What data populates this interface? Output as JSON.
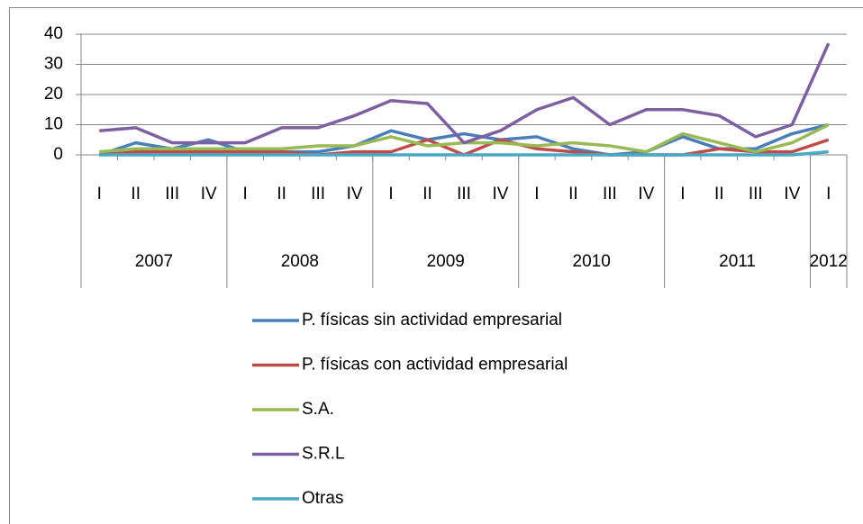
{
  "chart_data": {
    "type": "line",
    "category_groups": [
      {
        "name": "2007",
        "categories": [
          "I",
          "II",
          "III",
          "IV"
        ]
      },
      {
        "name": "2008",
        "categories": [
          "I",
          "II",
          "III",
          "IV"
        ]
      },
      {
        "name": "2009",
        "categories": [
          "I",
          "II",
          "III",
          "IV"
        ]
      },
      {
        "name": "2010",
        "categories": [
          "I",
          "II",
          "III",
          "IV"
        ]
      },
      {
        "name": "2011",
        "categories": [
          "I",
          "II",
          "III",
          "IV"
        ]
      },
      {
        "name": "2012",
        "categories": [
          "I"
        ]
      }
    ],
    "series": [
      {
        "name": "P. físicas sin actividad empresarial",
        "color": "#4a7ebb",
        "values": [
          0,
          4,
          2,
          5,
          1,
          1,
          1,
          3,
          8,
          5,
          7,
          5,
          6,
          2,
          0,
          1,
          6,
          2,
          2,
          7,
          10
        ]
      },
      {
        "name": "P. físicas con actividad empresarial",
        "color": "#be4b48",
        "values": [
          0,
          1,
          1,
          1,
          1,
          1,
          0,
          1,
          1,
          5,
          0,
          5,
          2,
          1,
          0,
          0,
          0,
          2,
          1,
          1,
          5
        ]
      },
      {
        "name": "S.A.",
        "color": "#98b954",
        "values": [
          1,
          2,
          2,
          2,
          2,
          2,
          3,
          3,
          6,
          3,
          4,
          4,
          3,
          4,
          3,
          1,
          7,
          4,
          1,
          4,
          10
        ]
      },
      {
        "name": "S.R.L",
        "color": "#7d60a0",
        "values": [
          8,
          9,
          4,
          4,
          4,
          9,
          9,
          13,
          18,
          17,
          4,
          8,
          15,
          19,
          10,
          15,
          15,
          13,
          6,
          10,
          37
        ]
      },
      {
        "name": "Otras",
        "color": "#46aac5",
        "values": [
          0,
          0,
          0,
          0,
          0,
          0,
          0,
          0,
          0,
          0,
          0,
          0,
          0,
          0,
          0,
          0,
          0,
          0,
          0,
          0,
          1
        ]
      }
    ],
    "ylim": [
      0,
      40
    ],
    "yticks": [
      0,
      10,
      20,
      30,
      40
    ],
    "grid": true,
    "legend": "bottom"
  }
}
